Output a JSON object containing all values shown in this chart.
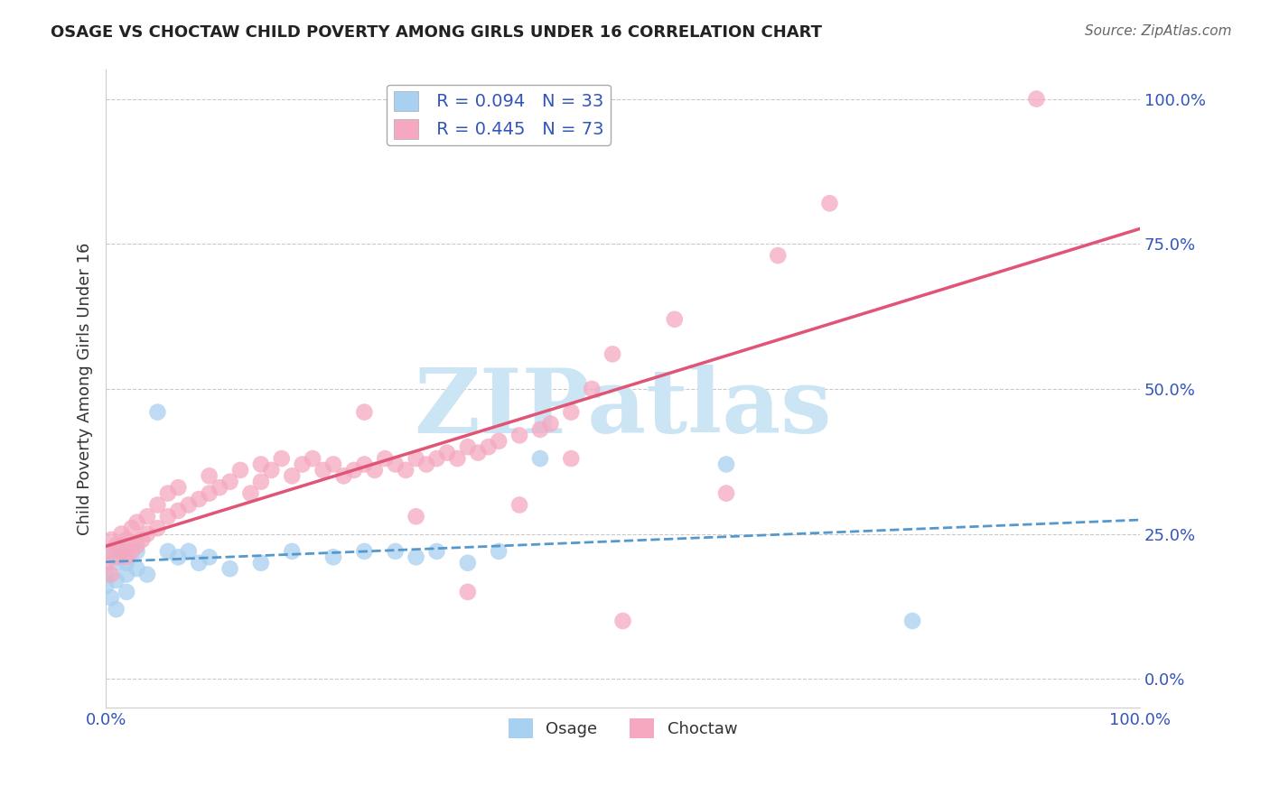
{
  "title": "OSAGE VS CHOCTAW CHILD POVERTY AMONG GIRLS UNDER 16 CORRELATION CHART",
  "source": "Source: ZipAtlas.com",
  "ylabel": "Child Poverty Among Girls Under 16",
  "xlim": [
    0.0,
    1.0
  ],
  "ylim": [
    -0.05,
    1.05
  ],
  "ytick_positions": [
    0.0,
    0.25,
    0.5,
    0.75,
    1.0
  ],
  "ytick_labels": [
    "0.0%",
    "25.0%",
    "50.0%",
    "75.0%",
    "100.0%"
  ],
  "xtick_positions": [
    0.0,
    1.0
  ],
  "xtick_labels": [
    "0.0%",
    "100.0%"
  ],
  "legend_labels": [
    "Osage",
    "Choctaw"
  ],
  "osage_R": "0.094",
  "osage_N": "33",
  "choctaw_R": "0.445",
  "choctaw_N": "73",
  "osage_color": "#a8d0f0",
  "choctaw_color": "#f5a8c0",
  "osage_line_color": "#5599cc",
  "choctaw_line_color": "#e05575",
  "watermark": "ZIPatlas",
  "watermark_color": "#cce5f5",
  "background_color": "#ffffff",
  "osage_x": [
    0.0,
    0.0,
    0.005,
    0.005,
    0.01,
    0.01,
    0.01,
    0.015,
    0.02,
    0.02,
    0.02,
    0.03,
    0.03,
    0.04,
    0.05,
    0.06,
    0.07,
    0.08,
    0.09,
    0.1,
    0.12,
    0.15,
    0.18,
    0.22,
    0.25,
    0.28,
    0.3,
    0.32,
    0.35,
    0.38,
    0.42,
    0.6,
    0.78
  ],
  "osage_y": [
    0.18,
    0.16,
    0.22,
    0.14,
    0.2,
    0.17,
    0.12,
    0.23,
    0.2,
    0.18,
    0.15,
    0.22,
    0.19,
    0.18,
    0.46,
    0.22,
    0.21,
    0.22,
    0.2,
    0.21,
    0.19,
    0.2,
    0.22,
    0.21,
    0.22,
    0.22,
    0.21,
    0.22,
    0.2,
    0.22,
    0.38,
    0.37,
    0.1
  ],
  "choctaw_x": [
    0.0,
    0.0,
    0.005,
    0.005,
    0.01,
    0.01,
    0.015,
    0.015,
    0.02,
    0.02,
    0.025,
    0.025,
    0.03,
    0.03,
    0.035,
    0.04,
    0.04,
    0.05,
    0.05,
    0.06,
    0.06,
    0.07,
    0.07,
    0.08,
    0.09,
    0.1,
    0.1,
    0.11,
    0.12,
    0.13,
    0.14,
    0.15,
    0.15,
    0.16,
    0.17,
    0.18,
    0.19,
    0.2,
    0.21,
    0.22,
    0.23,
    0.24,
    0.25,
    0.26,
    0.27,
    0.28,
    0.29,
    0.3,
    0.31,
    0.32,
    0.33,
    0.34,
    0.35,
    0.36,
    0.37,
    0.38,
    0.4,
    0.42,
    0.43,
    0.45,
    0.47,
    0.49,
    0.25,
    0.3,
    0.35,
    0.4,
    0.5,
    0.55,
    0.6,
    0.65,
    0.7,
    0.45,
    0.9
  ],
  "choctaw_y": [
    0.2,
    0.22,
    0.18,
    0.24,
    0.21,
    0.23,
    0.22,
    0.25,
    0.21,
    0.24,
    0.22,
    0.26,
    0.23,
    0.27,
    0.24,
    0.25,
    0.28,
    0.26,
    0.3,
    0.28,
    0.32,
    0.29,
    0.33,
    0.3,
    0.31,
    0.32,
    0.35,
    0.33,
    0.34,
    0.36,
    0.32,
    0.37,
    0.34,
    0.36,
    0.38,
    0.35,
    0.37,
    0.38,
    0.36,
    0.37,
    0.35,
    0.36,
    0.37,
    0.36,
    0.38,
    0.37,
    0.36,
    0.38,
    0.37,
    0.38,
    0.39,
    0.38,
    0.4,
    0.39,
    0.4,
    0.41,
    0.42,
    0.43,
    0.44,
    0.46,
    0.5,
    0.56,
    0.46,
    0.28,
    0.15,
    0.3,
    0.1,
    0.62,
    0.32,
    0.73,
    0.82,
    0.38,
    1.0
  ]
}
